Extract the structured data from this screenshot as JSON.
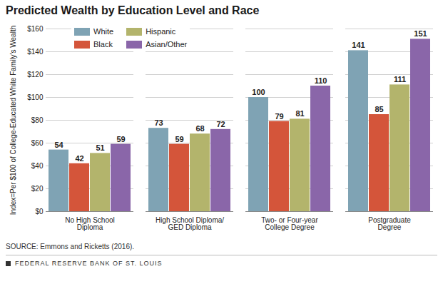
{
  "chart_data": {
    "type": "bar",
    "title": "Predicted Wealth by Education Level and Race",
    "y_label": "Index=Per $100 of College-Educated White Family's Wealth",
    "categories": [
      "No High School\nDiploma",
      "High School Diploma/\nGED Diploma",
      "Two- or Four-year\nCollege Degree",
      "Postgraduate\nDegree"
    ],
    "series": [
      {
        "name": "White",
        "color": "#7fa3b4",
        "values": [
          54,
          73,
          100,
          141
        ]
      },
      {
        "name": "Black",
        "color": "#d4553a",
        "values": [
          42,
          59,
          79,
          85
        ]
      },
      {
        "name": "Hispanic",
        "color": "#b3b46c",
        "values": [
          51,
          68,
          81,
          111
        ]
      },
      {
        "name": "Asian/Other",
        "color": "#8a66a9",
        "values": [
          59,
          72,
          110,
          151
        ]
      }
    ],
    "ylim": [
      0,
      160
    ],
    "yticks": [
      {
        "value": 0,
        "label": "$0"
      },
      {
        "value": 20,
        "label": "$20"
      },
      {
        "value": 40,
        "label": "$40"
      },
      {
        "value": 60,
        "label": "$60"
      },
      {
        "value": 80,
        "label": "$80"
      },
      {
        "value": 100,
        "label": "$100"
      },
      {
        "value": 120,
        "label": "$120"
      },
      {
        "value": 140,
        "label": "$140"
      },
      {
        "value": 160,
        "label": "$160"
      }
    ],
    "grid": true,
    "legend": "top-left",
    "data_labels": true,
    "source": "SOURCE: Emmons and Ricketts (2016).",
    "credit": "FEDERAL RESERVE BANK OF ST. LOUIS"
  }
}
